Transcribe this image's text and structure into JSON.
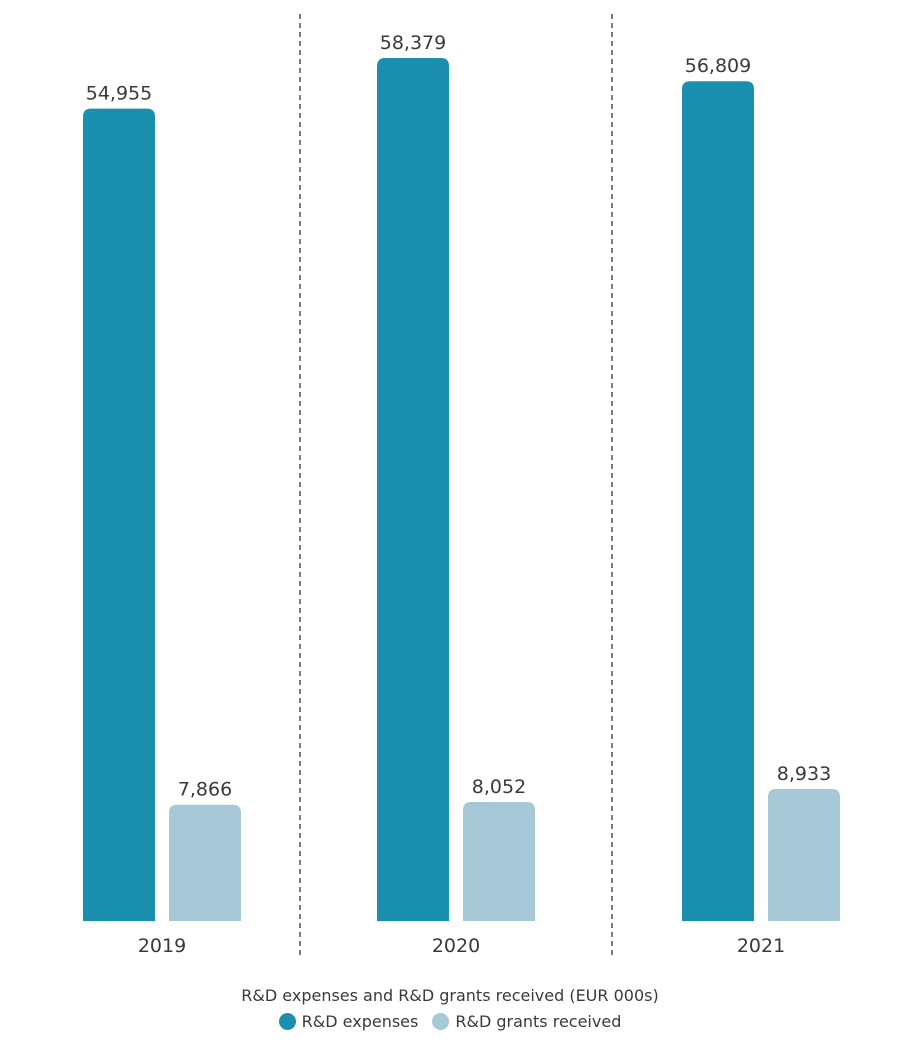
{
  "chart_data": {
    "type": "bar",
    "title": "R&D expenses and R&D grants received (EUR 000s)",
    "categories": [
      "2019",
      "2020",
      "2021"
    ],
    "series": [
      {
        "name": "R&D expenses",
        "values": [
          54955,
          58379,
          56809
        ],
        "labels": [
          "54,955",
          "58,379",
          "56,809"
        ],
        "color": "#1a90ae"
      },
      {
        "name": "R&D grants received",
        "values": [
          7866,
          8052,
          8933
        ],
        "labels": [
          "7,866",
          "8,052",
          "8,933"
        ],
        "color": "#a6c8d7"
      }
    ],
    "ylim": [
      0,
      58379
    ],
    "legend_position": "bottom",
    "grid": false,
    "separators": "dashed-vertical"
  }
}
